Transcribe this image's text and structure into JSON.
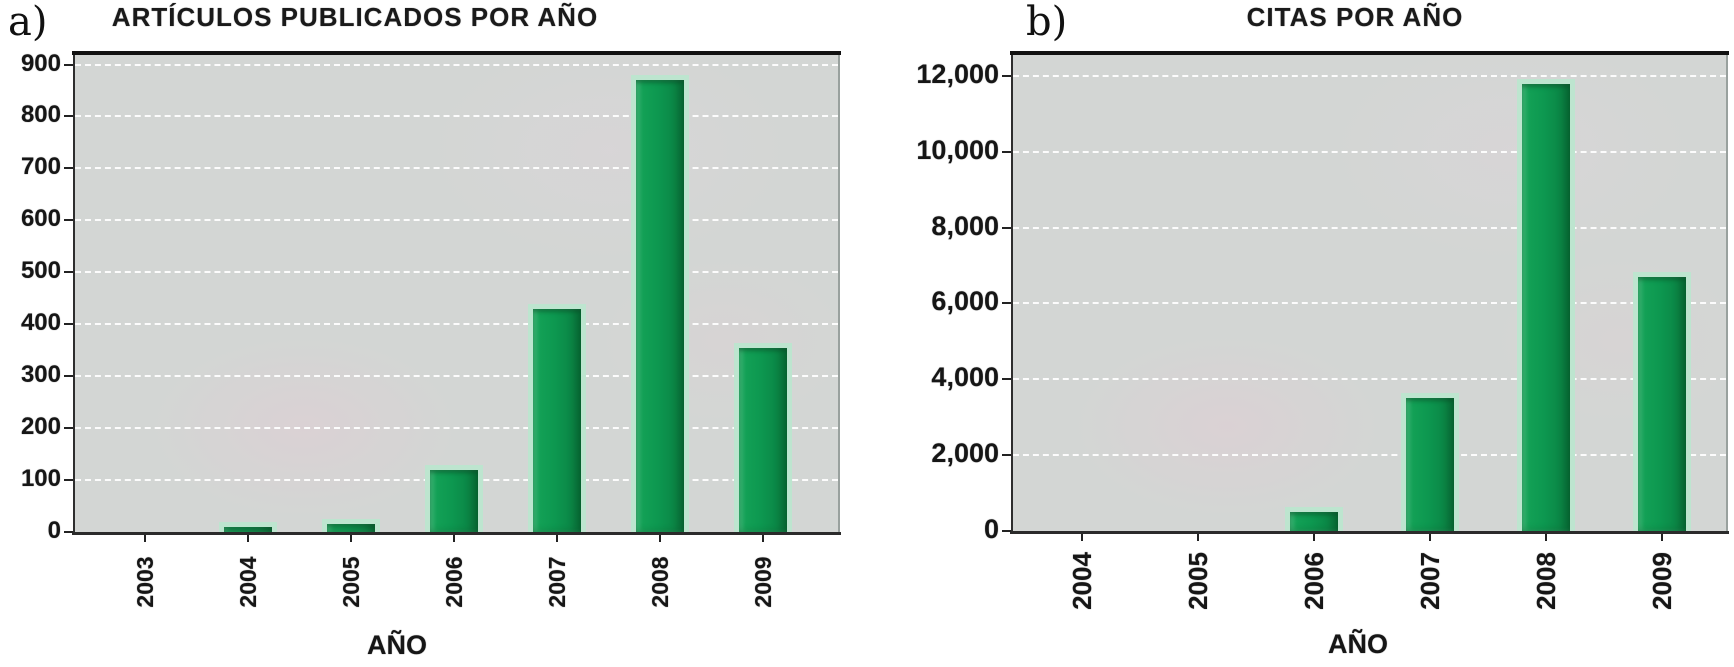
{
  "figure": {
    "panel_a_label": "a)",
    "panel_b_label": "b)"
  },
  "colors": {
    "bar_green": "#0d9850",
    "bar_halo_mint": "#bde5cf",
    "plot_background_gray": "#d3d6d4",
    "gridline_white": "#ffffff",
    "axis_dark": "#1a1a1a",
    "figure_background": "#ffffff",
    "text": "#191919"
  },
  "chart_data": [
    {
      "id": "articulos-publicados-por-ano",
      "type": "bar",
      "title": "ARTÍCULOS PUBLICADOS POR AÑO",
      "xlabel": "AÑO",
      "ylabel": "",
      "categories": [
        "2003",
        "2004",
        "2005",
        "2006",
        "2007",
        "2008",
        "2009"
      ],
      "values": [
        0,
        10,
        15,
        120,
        430,
        870,
        355
      ],
      "ylim": [
        0,
        900
      ],
      "ytick_step": 100,
      "ytick_labels": [
        "0",
        "100",
        "200",
        "300",
        "400",
        "500",
        "600",
        "700",
        "800",
        "900"
      ],
      "grid": "horizontal white dashed lines",
      "legend": "none",
      "bar_color": "#0d9850"
    },
    {
      "id": "citas-por-ano",
      "type": "bar",
      "title": "CITAS POR AÑO",
      "xlabel": "AÑO",
      "ylabel": "",
      "categories": [
        "2004",
        "2005",
        "2006",
        "2007",
        "2008",
        "2009"
      ],
      "values": [
        0,
        0,
        500,
        3500,
        11800,
        6700
      ],
      "ylim": [
        0,
        12000
      ],
      "ytick_step": 2000,
      "ytick_labels": [
        "0",
        "2,000",
        "4,000",
        "6,000",
        "8,000",
        "10,000",
        "12,000"
      ],
      "grid": "horizontal white dashed lines",
      "legend": "none",
      "bar_color": "#0d9850"
    }
  ]
}
